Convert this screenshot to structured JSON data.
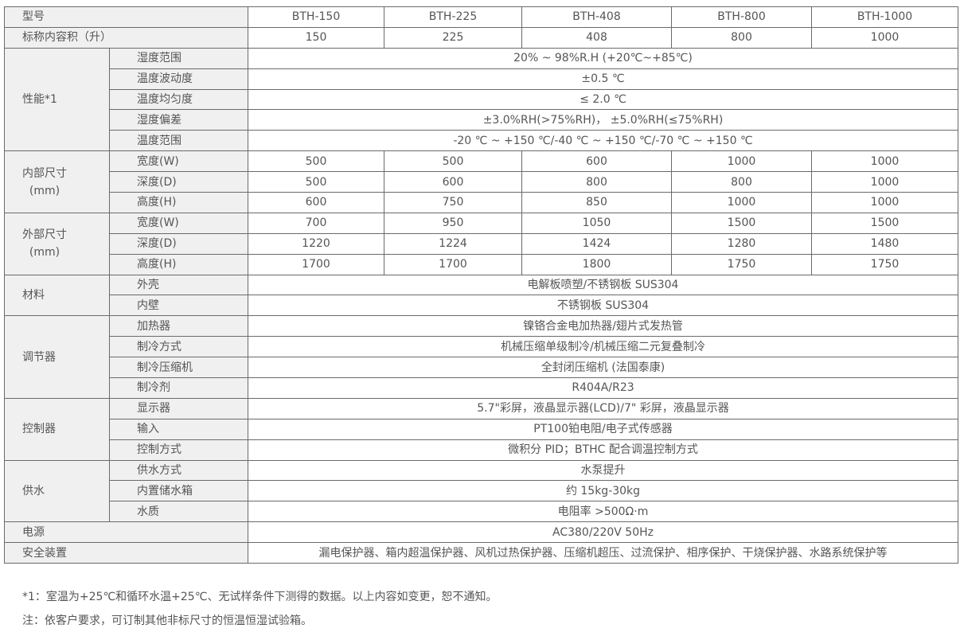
{
  "header": {
    "label": "型号",
    "models": [
      "BTH-150",
      "BTH-225",
      "BTH-408",
      "BTH-800",
      "BTH-1000"
    ]
  },
  "capacity": {
    "label": "标称内容积（升）",
    "values": [
      "150",
      "225",
      "408",
      "800",
      "1000"
    ]
  },
  "groups": [
    {
      "label": "性能*1",
      "rows": [
        {
          "label": "湿度范围",
          "value": "20% ~ 98%R.H (+20℃~+85℃)"
        },
        {
          "label": "温度波动度",
          "value": "±0.5 ℃"
        },
        {
          "label": "温度均匀度",
          "value": "≤ 2.0 ℃"
        },
        {
          "label": "湿度偏差",
          "value": "±3.0%RH(>75%RH)， ±5.0%RH(≤75%RH)"
        },
        {
          "label": "温度范围",
          "value": "-20 ℃ ~ +150 ℃/-40 ℃ ~ +150 ℃/-70 ℃ ~ +150 ℃"
        }
      ]
    },
    {
      "label": "内部尺寸",
      "label2": "(mm)",
      "rows": [
        {
          "label": "宽度(W)",
          "values": [
            "500",
            "500",
            "600",
            "1000",
            "1000"
          ]
        },
        {
          "label": "深度(D)",
          "values": [
            "500",
            "600",
            "800",
            "800",
            "1000"
          ]
        },
        {
          "label": "高度(H)",
          "values": [
            "600",
            "750",
            "850",
            "1000",
            "1000"
          ]
        }
      ]
    },
    {
      "label": "外部尺寸",
      "label2": "(mm)",
      "rows": [
        {
          "label": "宽度(W)",
          "values": [
            "700",
            "950",
            "1050",
            "1500",
            "1500"
          ]
        },
        {
          "label": "深度(D)",
          "values": [
            "1220",
            "1224",
            "1424",
            "1280",
            "1480"
          ]
        },
        {
          "label": "高度(H)",
          "values": [
            "1700",
            "1700",
            "1800",
            "1750",
            "1750"
          ]
        }
      ]
    },
    {
      "label": "材料",
      "rows": [
        {
          "label": "外壳",
          "value": "电解板喷塑/不锈钢板 SUS304"
        },
        {
          "label": "内壁",
          "value": "不锈钢板 SUS304"
        }
      ]
    },
    {
      "label": "调节器",
      "rows": [
        {
          "label": "加热器",
          "value": "镍铬合金电加热器/翅片式发热管"
        },
        {
          "label": "制冷方式",
          "value": "机械压缩单级制冷/机械压缩二元复叠制冷"
        },
        {
          "label": "制冷压缩机",
          "value": "全封闭压缩机 (法国泰康)"
        },
        {
          "label": "制冷剂",
          "value": "R404A/R23"
        }
      ]
    },
    {
      "label": "控制器",
      "rows": [
        {
          "label": "显示器",
          "value": "5.7\"彩屏，液晶显示器(LCD)/7\" 彩屏，液晶显示器"
        },
        {
          "label": "输入",
          "value": "PT100铂电阻/电子式传感器"
        },
        {
          "label": "控制方式",
          "value": "微积分 PID；BTHC 配合调温控制方式"
        }
      ]
    },
    {
      "label": "供水",
      "rows": [
        {
          "label": "供水方式",
          "value": "水泵提升"
        },
        {
          "label": "内置储水箱",
          "value": "约 15kg-30kg"
        },
        {
          "label": "水质",
          "value": "电阻率 >500Ω·m"
        }
      ]
    }
  ],
  "tail_rows": [
    {
      "label": "电源",
      "value": "AC380/220V 50Hz"
    },
    {
      "label": "安全装置",
      "value": "漏电保护器、箱内超温保护器、风机过热保护器、压缩机超压、过流保护、相序保护、干烧保护器、水路系统保护等"
    }
  ],
  "notes": [
    "*1：室温为+25℃和循环水温+25℃、无试样条件下测得的数据。以上内容如变更，恕不通知。",
    "注：依客户要求，可订制其他非标尺寸的恒温恒湿试验箱。"
  ]
}
